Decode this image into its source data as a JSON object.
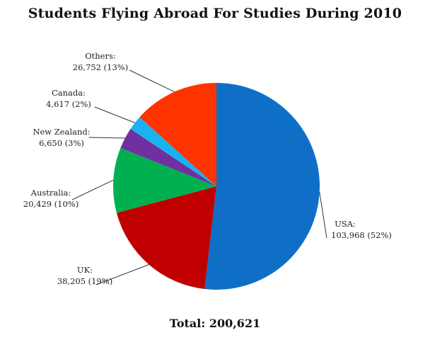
{
  "title": "Students Flying Abroad For Studies During 2010",
  "total_label": "Total: 200,621",
  "chart_data": {
    "type": "pie",
    "title": "Students Flying Abroad For Studies During 2010",
    "slices": [
      {
        "name": "USA",
        "label": "USA:",
        "value_label": "103,968 (52%)",
        "value": 103968,
        "percent": 52,
        "color": "#0f6fc6"
      },
      {
        "name": "UK",
        "label": "UK:",
        "value_label": "38,205 (19%)",
        "value": 38205,
        "percent": 19,
        "color": "#c00000"
      },
      {
        "name": "Australia",
        "label": "Australia:",
        "value_label": "20,429 (10%)",
        "value": 20429,
        "percent": 10,
        "color": "#00b050"
      },
      {
        "name": "New Zealand",
        "label": "New Zealand:",
        "value_label": "6,650 (3%)",
        "value": 6650,
        "percent": 3,
        "color": "#7030a0"
      },
      {
        "name": "Canada",
        "label": "Canada:",
        "value_label": "4,617 (2%)",
        "value": 4617,
        "percent": 2,
        "color": "#1ab2f0"
      },
      {
        "name": "Others",
        "label": "Others:",
        "value_label": "26,752 (13%)",
        "value": 26752,
        "percent": 13,
        "color": "#ff3300"
      }
    ],
    "total": 200621
  }
}
